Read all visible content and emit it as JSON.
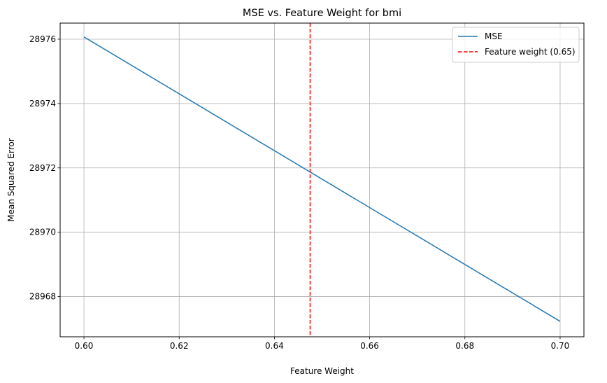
{
  "chart_data": {
    "type": "line",
    "title": "MSE vs. Feature Weight for bmi",
    "xlabel": "Feature Weight",
    "ylabel": "Mean Squared Error",
    "xlim": [
      0.595,
      0.705
    ],
    "ylim": [
      28966.75,
      28976.5
    ],
    "xticks": [
      0.6,
      0.62,
      0.64,
      0.66,
      0.68,
      0.7
    ],
    "xtick_labels": [
      "0.60",
      "0.62",
      "0.64",
      "0.66",
      "0.68",
      "0.70"
    ],
    "yticks": [
      28968,
      28970,
      28972,
      28974,
      28976
    ],
    "ytick_labels": [
      "28968",
      "28970",
      "28972",
      "28974",
      "28976"
    ],
    "grid": true,
    "legend_position": "top-right",
    "series": [
      {
        "name": "MSE",
        "color": "#1f77b4",
        "style": "solid",
        "x": [
          0.6,
          0.7
        ],
        "y": [
          28976.07,
          28967.23
        ]
      }
    ],
    "vlines": [
      {
        "name": "Feature weight (0.65)",
        "x": 0.6475,
        "color": "#ff0000",
        "style": "dashed"
      }
    ]
  }
}
